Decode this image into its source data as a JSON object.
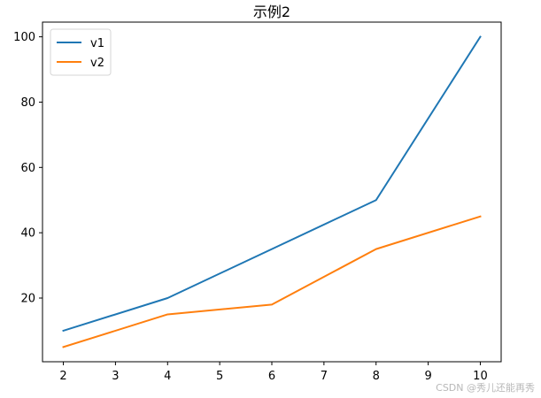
{
  "chart_data": {
    "type": "line",
    "title": "示例2",
    "xlabel": "",
    "ylabel": "",
    "x": [
      2,
      4,
      6,
      8,
      10
    ],
    "series": [
      {
        "name": "v1",
        "values": [
          10,
          20,
          35,
          50,
          100
        ],
        "color": "#1f77b4"
      },
      {
        "name": "v2",
        "values": [
          5,
          15,
          18,
          35,
          45
        ],
        "color": "#ff7f0e"
      }
    ],
    "xlim": [
      1.6,
      10.4
    ],
    "ylim": [
      0.5,
      104.5
    ],
    "xticks": [
      2,
      3,
      4,
      5,
      6,
      7,
      8,
      9,
      10
    ],
    "yticks": [
      20,
      40,
      60,
      80,
      100
    ],
    "legend_placement": "top-left",
    "grid": false
  },
  "watermark": "CSDN @秀儿还能再秀"
}
